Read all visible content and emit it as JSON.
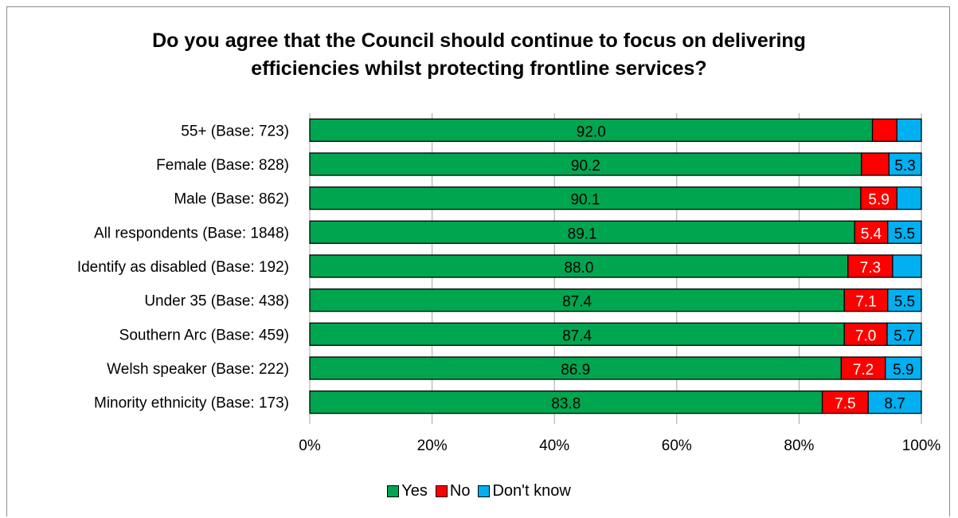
{
  "chart_data": {
    "type": "bar",
    "orientation": "horizontal",
    "stacked": "percent",
    "title_lines": [
      "Do you agree that the Council should continue to focus on delivering",
      "efficiencies whilst protecting frontline services?"
    ],
    "categories": [
      "55+ (Base: 723)",
      "Female (Base: 828)",
      "Male (Base: 862)",
      "All respondents (Base: 1848)",
      "Identify as disabled (Base: 192)",
      "Under 35 (Base: 438)",
      "Southern Arc (Base: 459)",
      "Welsh speaker (Base: 222)",
      "Minority ethnicity (Base: 173)"
    ],
    "series": [
      {
        "name": "Yes",
        "color": "#00a550",
        "values": [
          92.0,
          90.2,
          90.1,
          89.1,
          88.0,
          87.4,
          87.4,
          86.9,
          83.8
        ],
        "labels": [
          "92.0",
          "90.2",
          "90.1",
          "89.1",
          "88.0",
          "87.4",
          "87.4",
          "86.9",
          "83.8"
        ]
      },
      {
        "name": "No",
        "color": "#ff0000",
        "values": [
          4.0,
          4.5,
          5.9,
          5.4,
          7.3,
          7.1,
          7.0,
          7.2,
          7.5
        ],
        "labels": [
          "",
          "",
          "5.9",
          "5.4",
          "7.3",
          "7.1",
          "7.0",
          "7.2",
          "7.5"
        ]
      },
      {
        "name": "Don't know",
        "color": "#00b0f0",
        "values": [
          4.0,
          5.3,
          4.0,
          5.5,
          4.7,
          5.5,
          5.7,
          5.9,
          8.7
        ],
        "labels": [
          "",
          "5.3",
          "",
          "5.5",
          "",
          "5.5",
          "5.7",
          "5.9",
          "8.7"
        ]
      }
    ],
    "x_ticks": [
      "0%",
      "20%",
      "40%",
      "60%",
      "80%",
      "100%"
    ],
    "xlim": [
      0,
      100
    ],
    "grid": true,
    "legend_position": "bottom"
  }
}
